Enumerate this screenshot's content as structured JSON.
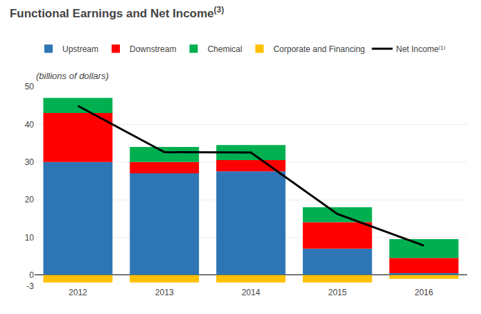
{
  "chart_data": {
    "type": "bar",
    "title": "Functional Earnings and Net Income",
    "annotations": [
      "(3)"
    ],
    "subtitle": "(billions of dollars)",
    "categories": [
      "2012",
      "2013",
      "2014",
      "2015",
      "2016"
    ],
    "stacked": true,
    "series": [
      {
        "name": "Upstream",
        "color": "#2E75B6",
        "values": [
          30,
          27,
          27.5,
          7,
          0.5
        ]
      },
      {
        "name": "Downstream",
        "color": "#FF0000",
        "values": [
          13,
          3,
          3,
          7,
          4
        ]
      },
      {
        "name": "Chemical",
        "color": "#00B050",
        "values": [
          4,
          4,
          4,
          4,
          5
        ]
      },
      {
        "name": "Corporate and Financing",
        "color": "#FFC000",
        "values": [
          -2,
          -2,
          -2,
          -2,
          -1
        ]
      },
      {
        "name": "Net Income⁽¹⁾",
        "type": "line",
        "color": "#000000",
        "values": [
          44.9,
          32.6,
          32.5,
          16.2,
          7.8
        ]
      }
    ],
    "ylim": [
      -3,
      50
    ],
    "yticks": [
      -3,
      0,
      10,
      20,
      30,
      40,
      50
    ],
    "grid": true
  }
}
